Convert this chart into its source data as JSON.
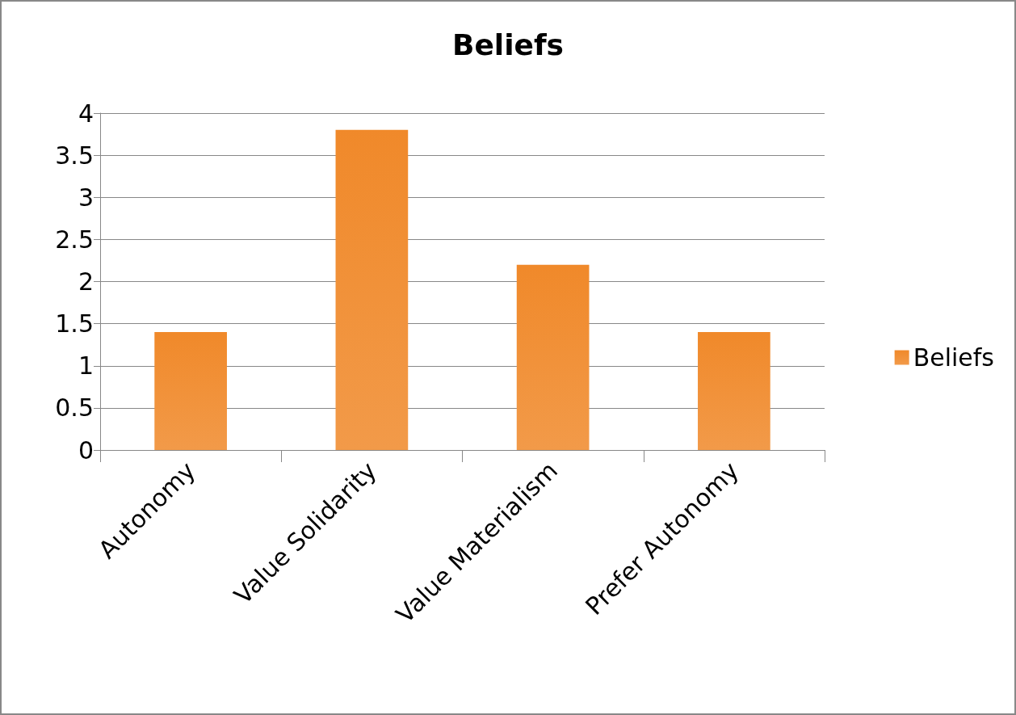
{
  "chart_data": {
    "type": "bar",
    "title": "Beliefs",
    "categories": [
      "Autonomy",
      "Value Solidarity",
      "Value Materialism",
      "Prefer Autonomy"
    ],
    "series": [
      {
        "name": "Beliefs",
        "color": "#f0892a",
        "values": [
          1.4,
          3.8,
          2.2,
          1.4
        ]
      }
    ],
    "ylim": [
      0,
      4
    ],
    "yticks": [
      0,
      0.5,
      1,
      1.5,
      2,
      2.5,
      3,
      3.5,
      4
    ],
    "grid": "y",
    "legend": "right"
  }
}
